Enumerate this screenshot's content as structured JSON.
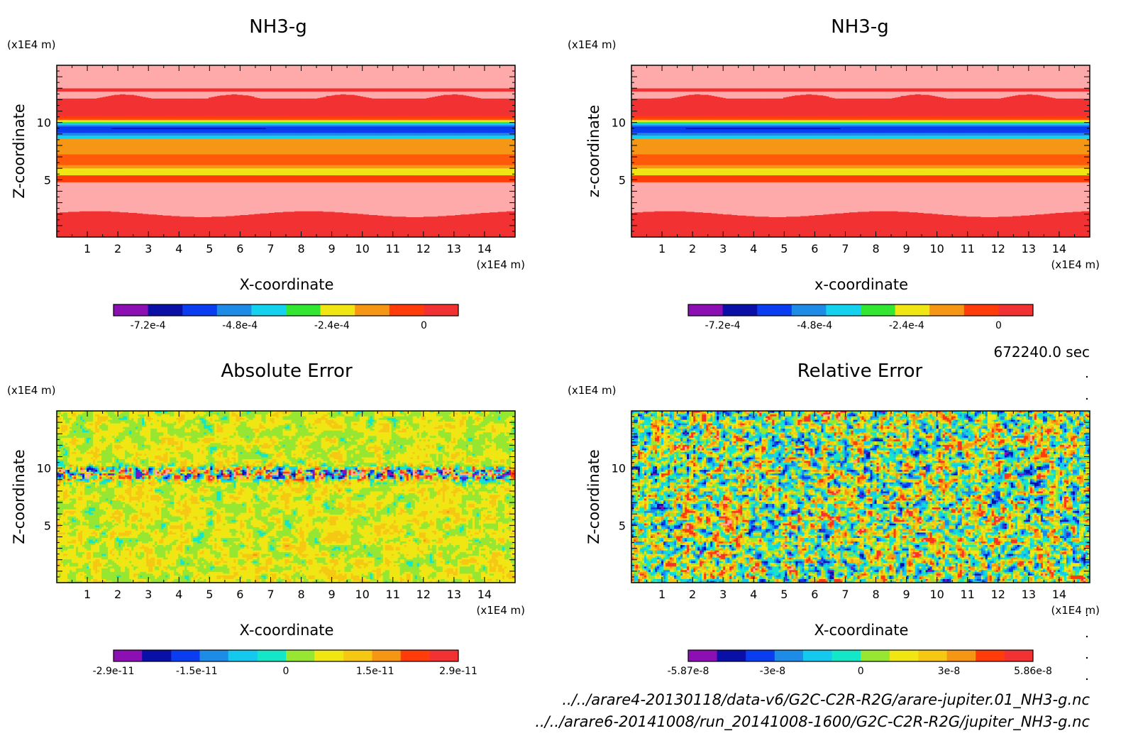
{
  "timestamp": "672240.0 sec",
  "files": [
    "../../arare4-20130118/data-v6/G2C-C2R-R2G/arare-jupiter.01_NH3-g.nc",
    "../../arare6-20141008/run_20141008-1600/G2C-C2R-R2G/jupiter_NH3-g.nc"
  ],
  "chart_data": [
    {
      "type": "heatmap",
      "title": "NH3-g",
      "xlabel": "X-coordinate",
      "ylabel": "Z-coordinate",
      "x_unit": "(x1E4 m)",
      "y_unit": "(x1E4 m)",
      "xlim": [
        0,
        15
      ],
      "ylim": [
        0,
        15
      ],
      "x_ticks": [
        1,
        2,
        3,
        4,
        5,
        6,
        7,
        8,
        9,
        10,
        11,
        12,
        13,
        14
      ],
      "y_ticks": [
        5,
        10
      ],
      "levels": [
        -0.00081,
        -0.00072,
        -0.00063,
        -0.00054,
        -0.00045,
        -0.00036,
        -0.00027,
        -0.00018,
        -9e-05,
        0,
        9e-05
      ],
      "colorbar_labels": [
        "-7.2e-4",
        "-4.8e-4",
        "-2.4e-4",
        "0"
      ],
      "colorbar_label_values": [
        -0.00072,
        -0.00048,
        -0.00024,
        0
      ],
      "field": "stratified"
    },
    {
      "type": "heatmap",
      "title": "NH3-g",
      "xlabel": "x-coordinate",
      "ylabel": "z-coordinate",
      "x_unit": "(x1E4 m)",
      "y_unit": "(x1E4 m)",
      "xlim": [
        0,
        15
      ],
      "ylim": [
        0,
        15
      ],
      "x_ticks": [
        1,
        2,
        3,
        4,
        5,
        6,
        7,
        8,
        9,
        10,
        11,
        12,
        13,
        14
      ],
      "y_ticks": [
        5,
        10
      ],
      "levels": [
        -0.00081,
        -0.00072,
        -0.00063,
        -0.00054,
        -0.00045,
        -0.00036,
        -0.00027,
        -0.00018,
        -9e-05,
        0,
        9e-05
      ],
      "colorbar_labels": [
        "-7.2e-4",
        "-4.8e-4",
        "-2.4e-4",
        "0"
      ],
      "colorbar_label_values": [
        -0.00072,
        -0.00048,
        -0.00024,
        0
      ],
      "field": "stratified"
    },
    {
      "type": "heatmap",
      "title": "Absolute Error",
      "xlabel": "X-coordinate",
      "ylabel": "Z-coordinate",
      "x_unit": "(x1E4 m)",
      "y_unit": "(x1E4 m)",
      "xlim": [
        0,
        15
      ],
      "ylim": [
        0,
        15
      ],
      "x_ticks": [
        1,
        2,
        3,
        4,
        5,
        6,
        7,
        8,
        9,
        10,
        11,
        12,
        13,
        14
      ],
      "y_ticks": [
        5,
        10
      ],
      "levels": [
        -2.9e-11,
        -2.42e-11,
        -1.93e-11,
        -1.45e-11,
        -9.7e-12,
        -4.8e-12,
        0,
        4.8e-12,
        9.7e-12,
        1.45e-11,
        1.93e-11,
        2.42e-11,
        2.9e-11
      ],
      "colorbar_labels": [
        "-2.9e-11",
        "-1.5e-11",
        "0",
        "1.5e-11",
        "2.9e-11"
      ],
      "colorbar_label_values": [
        -2.9e-11,
        -1.5e-11,
        0,
        1.5e-11,
        2.9e-11
      ],
      "field": "noise-band"
    },
    {
      "type": "heatmap",
      "title": "Relative Error",
      "xlabel": "X-coordinate",
      "ylabel": "Z-coordinate",
      "x_unit": "(x1E4 m)",
      "y_unit": "(x1E4 m)",
      "xlim": [
        0,
        15
      ],
      "ylim": [
        0,
        15
      ],
      "x_ticks": [
        1,
        2,
        3,
        4,
        5,
        6,
        7,
        8,
        9,
        10,
        11,
        12,
        13,
        14
      ],
      "y_ticks": [
        5,
        10
      ],
      "levels": [
        -5.87e-08,
        -4.89e-08,
        -3.91e-08,
        -2.93e-08,
        -1.96e-08,
        -9.8e-09,
        0,
        9.8e-09,
        1.96e-08,
        2.93e-08,
        3.91e-08,
        4.89e-08,
        5.86e-08
      ],
      "colorbar_labels": [
        "-5.87e-8",
        "-3e-8",
        "0",
        "3e-8",
        "5.86e-8"
      ],
      "colorbar_label_values": [
        -5.87e-08,
        -3e-08,
        0,
        3e-08,
        5.86e-08
      ],
      "field": "noise"
    }
  ],
  "colors": {
    "ramp10": [
      "#8c0fb4",
      "#0a0fa8",
      "#0a3cf0",
      "#1e8ce6",
      "#14d2ee",
      "#32e632",
      "#f0e614",
      "#f59614",
      "#ff3c0a",
      "#f23232",
      "#ffaaaa"
    ],
    "ramp12": [
      "#8c0fb4",
      "#0a0fa8",
      "#0a3cf0",
      "#1e8ce6",
      "#14c8ee",
      "#14e6c8",
      "#96e632",
      "#f0e614",
      "#f5c814",
      "#f59614",
      "#ff3c0a",
      "#f23232",
      "#ffaaaa"
    ],
    "nh3_used": [
      "#0a0fa8",
      "#0a3cf0",
      "#1e8ce6",
      "#14d2ee",
      "#32e632",
      "#f0e614",
      "#f59614",
      "#ff5a0a",
      "#ff3c0a",
      "#f23232",
      "#ffaaaa"
    ]
  }
}
